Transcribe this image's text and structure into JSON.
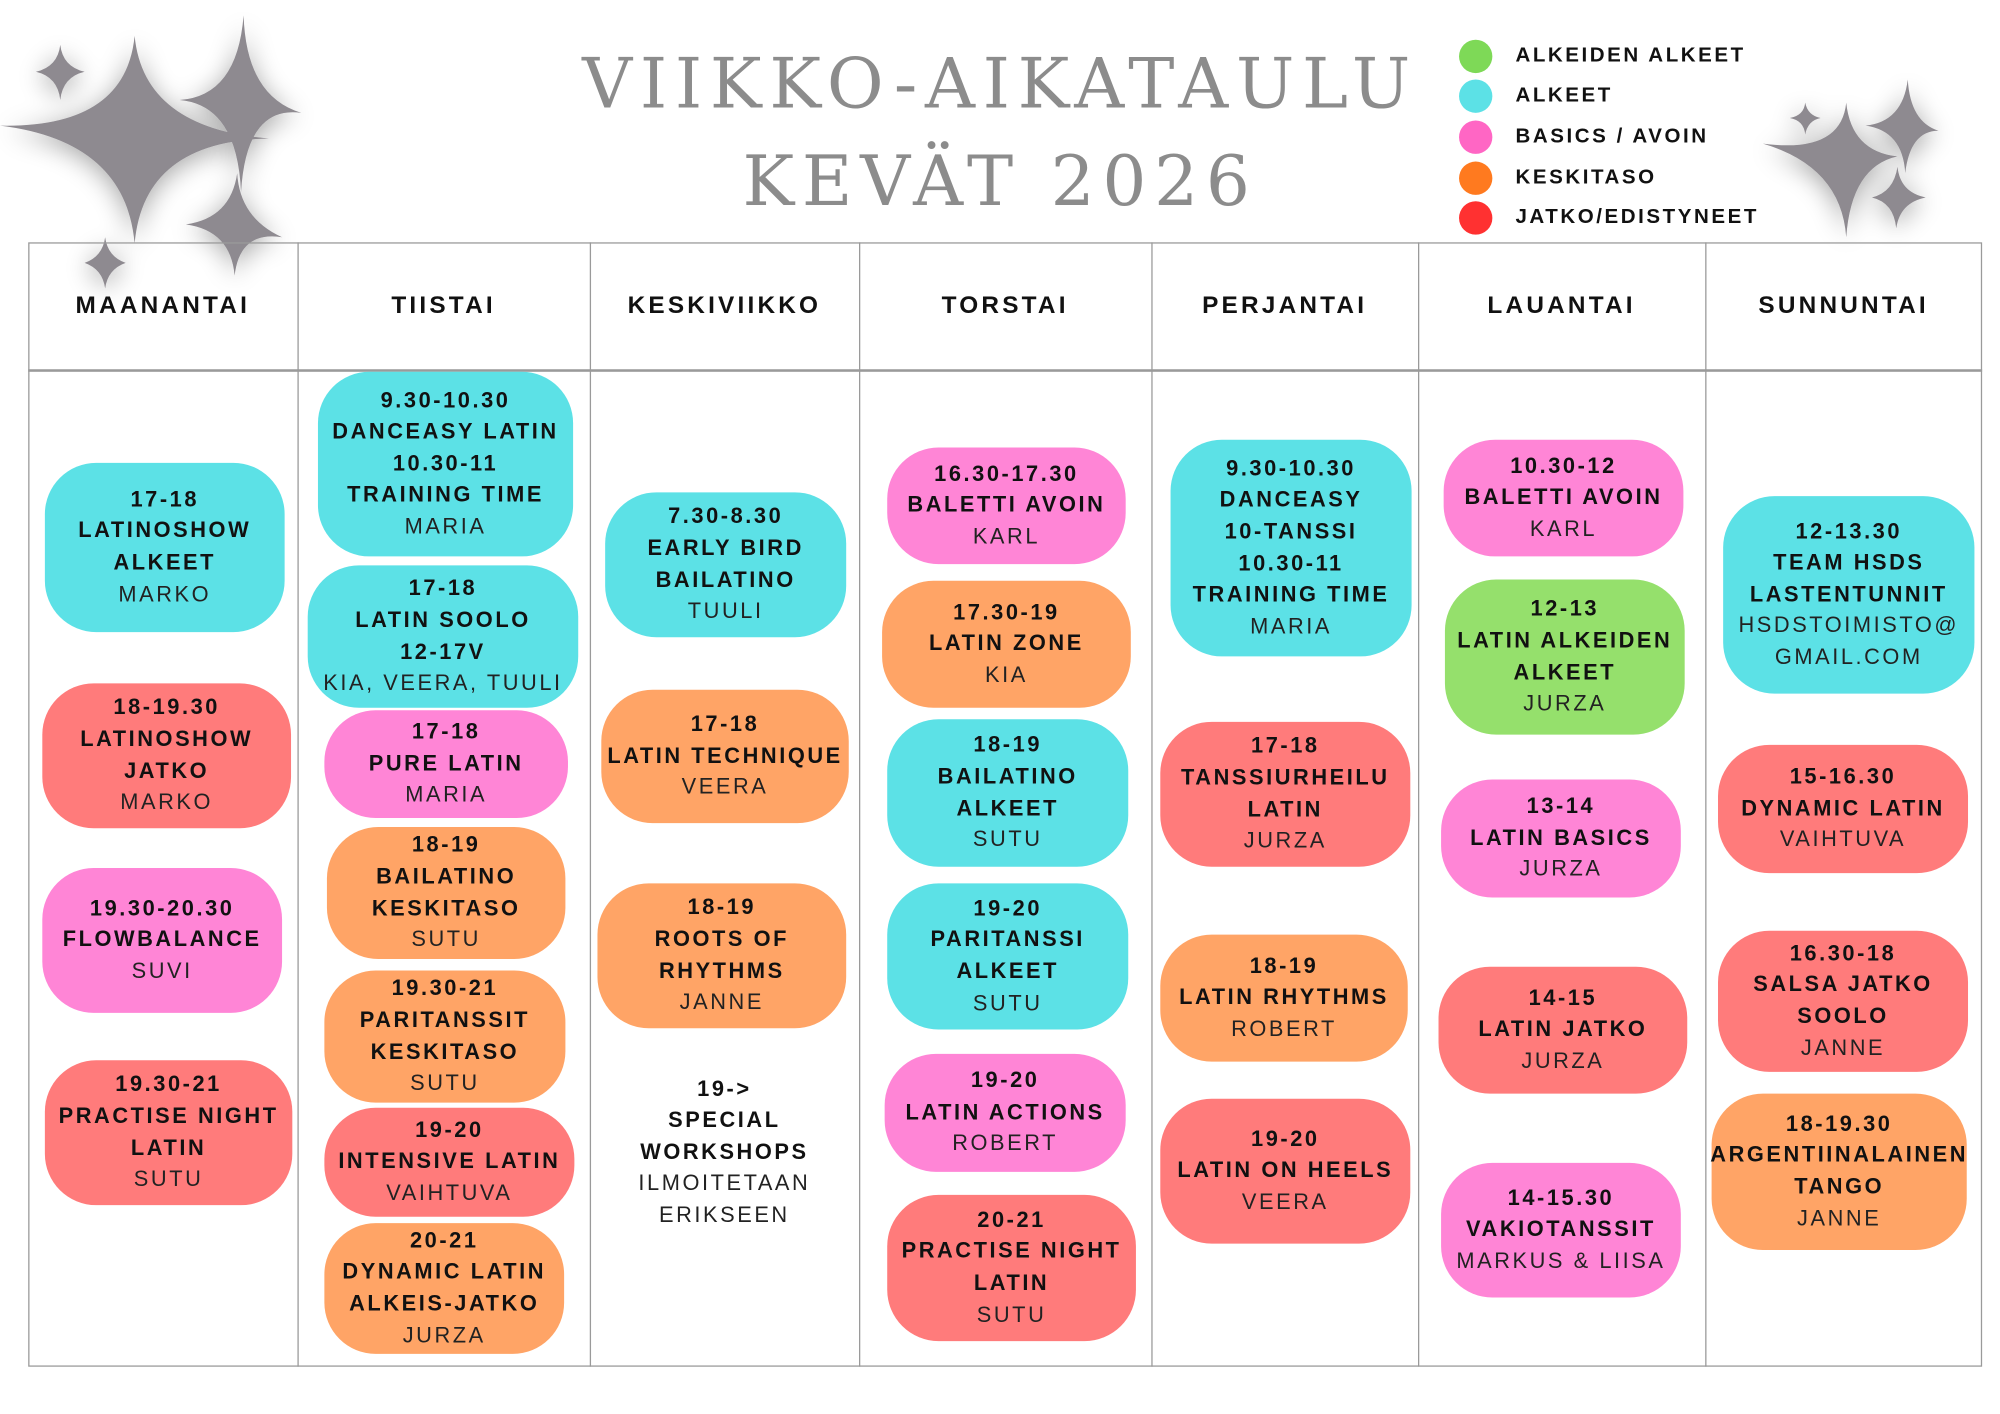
{
  "title": {
    "line1": "VIIKKO-AIKATAULU",
    "line2": "KEVÄT 2026"
  },
  "colors": {
    "alkeiden_alkeet": "#95e06c",
    "alkeet": "#5ce1e6",
    "basics": "#ff85d6",
    "keskitaso": "#ffa466",
    "jatko": "#ff7b7b",
    "title": "#8c8c8c",
    "sparkle": "#8e8a90"
  },
  "legend": [
    {
      "label": "ALKEIDEN ALKEET",
      "color": "#7ed957"
    },
    {
      "label": "ALKEET",
      "color": "#5ce1e6"
    },
    {
      "label": "BASICS / AVOIN",
      "color": "#ff66c4"
    },
    {
      "label": "KESKITASO",
      "color": "#ff7a1f"
    },
    {
      "label": "JATKO/EDISTYNEET",
      "color": "#ff3131"
    }
  ],
  "days": [
    "MAANANTAI",
    "TIISTAI",
    "KESKIVIIKKO",
    "TORSTAI",
    "PERJANTAI",
    "LAUANTAI",
    "SUNNUNTAI"
  ],
  "classes": [
    [
      {
        "level": "alkeet",
        "bold": [
          "17-18",
          "LATINOSHOW",
          "ALKEET"
        ],
        "light": [
          "MARKO"
        ]
      },
      {
        "level": "jatko",
        "bold": [
          "18-19.30",
          "LATINOSHOW",
          "JATKO"
        ],
        "light": [
          "MARKO"
        ]
      },
      {
        "level": "basics",
        "bold": [
          "19.30-20.30",
          "FLOWBALANCE"
        ],
        "light": [
          "SUVI"
        ]
      },
      {
        "level": "jatko",
        "bold": [
          "19.30-21",
          "PRACTISE NIGHT",
          "LATIN"
        ],
        "light": [
          "SUTU"
        ]
      }
    ],
    [
      {
        "level": "alkeet",
        "bold": [
          "9.30-10.30",
          "DANCEASY LATIN",
          "10.30-11",
          "TRAINING TIME"
        ],
        "light": [
          "MARIA"
        ]
      },
      {
        "level": "alkeet",
        "bold": [
          "17-18",
          "LATIN SOOLO",
          "12-17V"
        ],
        "light": [
          "KIA, VEERA, TUULI"
        ]
      },
      {
        "level": "basics",
        "bold": [
          "17-18",
          "PURE LATIN"
        ],
        "light": [
          "MARIA"
        ]
      },
      {
        "level": "keskitaso",
        "bold": [
          "18-19",
          "BAILATINO",
          "KESKITASO"
        ],
        "light": [
          "SUTU"
        ]
      },
      {
        "level": "keskitaso",
        "bold": [
          "19.30-21",
          "PARITANSSIT",
          "KESKITASO"
        ],
        "light": [
          "SUTU"
        ]
      },
      {
        "level": "jatko",
        "bold": [
          "19-20",
          "INTENSIVE LATIN"
        ],
        "light": [
          "VAIHTUVA"
        ]
      },
      {
        "level": "keskitaso",
        "bold": [
          "20-21",
          "DYNAMIC LATIN",
          "ALKEIS-JATKO"
        ],
        "light": [
          "JURZA"
        ]
      }
    ],
    [
      {
        "level": "alkeet",
        "bold": [
          "7.30-8.30",
          "EARLY BIRD",
          "BAILATINO"
        ],
        "light": [
          "TUULI"
        ]
      },
      {
        "level": "keskitaso",
        "bold": [
          "17-18",
          "LATIN TECHNIQUE"
        ],
        "light": [
          "VEERA"
        ]
      },
      {
        "level": "keskitaso",
        "bold": [
          "18-19",
          "ROOTS OF",
          "RHYTHMS"
        ],
        "light": [
          "JANNE"
        ]
      },
      {
        "level": "none",
        "bold": [
          "19->",
          "SPECIAL",
          "WORKSHOPS"
        ],
        "light": [
          "ILMOITETAAN",
          "ERIKSEEN"
        ]
      }
    ],
    [
      {
        "level": "basics",
        "bold": [
          "16.30-17.30",
          "BALETTI AVOIN"
        ],
        "light": [
          "KARL"
        ]
      },
      {
        "level": "keskitaso",
        "bold": [
          "17.30-19",
          "LATIN ZONE"
        ],
        "light": [
          "KIA"
        ]
      },
      {
        "level": "alkeet",
        "bold": [
          "18-19",
          "BAILATINO",
          "ALKEET"
        ],
        "light": [
          "SUTU"
        ]
      },
      {
        "level": "alkeet",
        "bold": [
          "19-20",
          "PARITANSSI",
          "ALKEET"
        ],
        "light": [
          "SUTU"
        ]
      },
      {
        "level": "basics",
        "bold": [
          "19-20",
          "LATIN ACTIONS"
        ],
        "light": [
          "ROBERT"
        ]
      },
      {
        "level": "jatko",
        "bold": [
          "20-21",
          "PRACTISE NIGHT",
          "LATIN"
        ],
        "light": [
          "SUTU"
        ]
      }
    ],
    [
      {
        "level": "alkeet",
        "bold": [
          "9.30-10.30",
          "DANCEASY",
          "10-TANSSI",
          "10.30-11",
          "TRAINING TIME"
        ],
        "light": [
          "MARIA"
        ]
      },
      {
        "level": "jatko",
        "bold": [
          "17-18",
          "TANSSIURHEILU",
          "LATIN"
        ],
        "light": [
          "JURZA"
        ]
      },
      {
        "level": "keskitaso",
        "bold": [
          "18-19",
          "LATIN RHYTHMS"
        ],
        "light": [
          "ROBERT"
        ]
      },
      {
        "level": "jatko",
        "bold": [
          "19-20",
          "LATIN ON HEELS"
        ],
        "light": [
          "VEERA"
        ]
      }
    ],
    [
      {
        "level": "basics",
        "bold": [
          "10.30-12",
          "BALETTI AVOIN"
        ],
        "light": [
          "KARL"
        ]
      },
      {
        "level": "alkeiden_alkeet",
        "bold": [
          "12-13",
          "LATIN ALKEIDEN",
          "ALKEET"
        ],
        "light": [
          "JURZA"
        ]
      },
      {
        "level": "basics",
        "bold": [
          "13-14",
          "LATIN BASICS"
        ],
        "light": [
          "JURZA"
        ]
      },
      {
        "level": "jatko",
        "bold": [
          "14-15",
          "LATIN JATKO"
        ],
        "light": [
          "JURZA"
        ]
      },
      {
        "level": "basics",
        "bold": [
          "14-15.30",
          "VAKIOTANSSIT"
        ],
        "light": [
          "MARKUS & LIISA"
        ]
      }
    ],
    [
      {
        "level": "alkeet",
        "bold": [
          "12-13.30",
          "TEAM HSDS",
          "LASTENTUNNIT"
        ],
        "light": [
          "HSDSTOIMISTO@",
          "GMAIL.COM"
        ]
      },
      {
        "level": "jatko",
        "bold": [
          "15-16.30",
          "DYNAMIC LATIN"
        ],
        "light": [
          "VAIHTUVA"
        ]
      },
      {
        "level": "jatko",
        "bold": [
          "16.30-18",
          "SALSA JATKO",
          "SOOLO"
        ],
        "light": [
          "JANNE"
        ]
      },
      {
        "level": "keskitaso",
        "bold": [
          "18-19.30",
          "ARGENTIINALAINEN",
          "TANGO"
        ],
        "light": [
          "JANNE"
        ]
      }
    ]
  ]
}
